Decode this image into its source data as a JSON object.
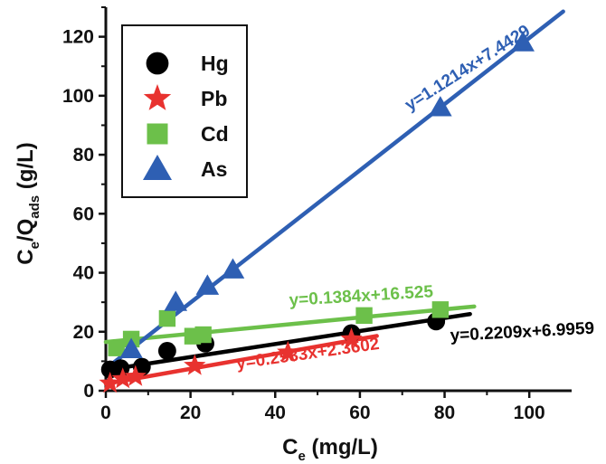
{
  "chart_data": {
    "type": "scatter",
    "xlabel": {
      "main": "C",
      "sub": "e",
      "unit": " (mg/L)"
    },
    "ylabel": {
      "main1": "C",
      "sub1": "e",
      "main2": "/Q",
      "sub2": "ads",
      "unit": " (g/L)"
    },
    "xlim": [
      0,
      110
    ],
    "ylim": [
      0,
      130
    ],
    "xticks": [
      "0",
      "20",
      "40",
      "60",
      "80",
      "100"
    ],
    "yticks": [
      "0",
      "20",
      "40",
      "60",
      "80",
      "100",
      "120"
    ],
    "legend_position": "top-left",
    "series": [
      {
        "name": "Hg",
        "color": "#000000",
        "marker": "circle",
        "points": [
          [
            1,
            7.2
          ],
          [
            3.5,
            7.6
          ],
          [
            8.5,
            8.1
          ],
          [
            14.5,
            13.5
          ],
          [
            23.5,
            16
          ],
          [
            58,
            19.5
          ],
          [
            78,
            23.5
          ]
        ],
        "fit": {
          "label": "y=0.2209x+6.9959",
          "slope": 0.2209,
          "intercept": 6.9959,
          "x_range": [
            0,
            86
          ]
        }
      },
      {
        "name": "Pb",
        "color": "#e8322f",
        "marker": "star",
        "points": [
          [
            1,
            2.5
          ],
          [
            4,
            4
          ],
          [
            7,
            4.8
          ],
          [
            21,
            8.5
          ],
          [
            43,
            13
          ],
          [
            58,
            17.5
          ]
        ],
        "fit": {
          "label": "y=0.2533x+2.3602",
          "slope": 0.2533,
          "intercept": 2.3602,
          "x_range": [
            0,
            64
          ]
        }
      },
      {
        "name": "Cd",
        "color": "#6cc04a",
        "marker": "square",
        "points": [
          [
            2.5,
            14.5
          ],
          [
            6,
            17.5
          ],
          [
            14.5,
            24.5
          ],
          [
            20.5,
            18.5
          ],
          [
            23,
            19
          ],
          [
            61,
            25.5
          ],
          [
            79,
            27.5
          ]
        ],
        "fit": {
          "label": "y=0.1384x+16.525",
          "slope": 0.1384,
          "intercept": 16.525,
          "x_range": [
            0,
            87
          ]
        }
      },
      {
        "name": "As",
        "color": "#2e5fb3",
        "marker": "triangle",
        "points": [
          [
            6,
            14
          ],
          [
            16.5,
            30
          ],
          [
            24,
            35.5
          ],
          [
            30,
            41
          ],
          [
            79,
            96
          ],
          [
            98.5,
            118
          ]
        ],
        "fit": {
          "label": "y=1.1214x+7.4429",
          "slope": 1.1214,
          "intercept": 7.4429,
          "x_range": [
            0,
            108
          ]
        }
      }
    ]
  }
}
